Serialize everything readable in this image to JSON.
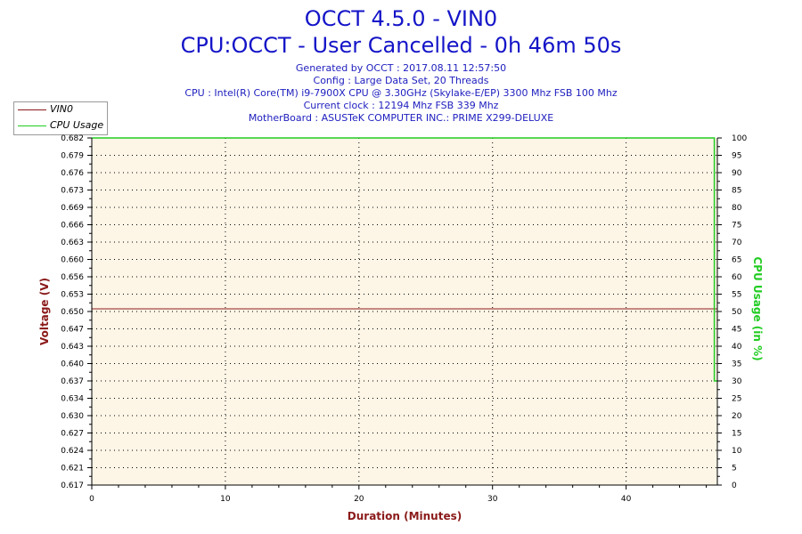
{
  "header": {
    "title": "OCCT 4.5.0 - VIN0",
    "subtitle": "CPU:OCCT - User Cancelled - 0h 46m 50s",
    "info_lines": [
      "Generated by OCCT : 2017.08.11 12:57:50",
      "Config : Large Data Set, 20 Threads",
      "CPU : Intel(R) Core(TM) i9-7900X CPU @ 3.30GHz (Skylake-E/EP) 3300 Mhz FSB 100 Mhz",
      "Current clock : 12194 Mhz FSB 339 Mhz",
      "MotherBoard : ASUSTeK COMPUTER INC.: PRIME X299-DELUXE"
    ]
  },
  "legend": {
    "placement": "top-left",
    "items": [
      {
        "label": "VIN0",
        "color": "#8b1a1a"
      },
      {
        "label": "CPU Usage",
        "color": "#22cc22"
      }
    ]
  },
  "colors": {
    "plot_background": "#fdf5e6",
    "title_text": "#1414c8",
    "axis_label_left": "#8b1a1a",
    "axis_label_right": "#22cc22",
    "axis_label_bottom": "#8b1a1a"
  },
  "chart_data": {
    "type": "line",
    "title": "OCCT 4.5.0 - VIN0",
    "subtitle": "CPU:OCCT - User Cancelled - 0h 46m 50s",
    "xlabel": "Duration (Minutes)",
    "ylabel": "Voltage (V)",
    "y2label": "CPU Usage (in %)",
    "xlim": [
      0,
      46.83
    ],
    "ylim": [
      0.617,
      0.682
    ],
    "y2lim": [
      0,
      100
    ],
    "x_ticks": [
      "0",
      "10",
      "20",
      "30",
      "40"
    ],
    "x_tick_values": [
      0,
      10,
      20,
      30,
      40
    ],
    "y_ticks": [
      "0.682",
      "0.679",
      "0.676",
      "0.673",
      "0.669",
      "0.666",
      "0.663",
      "0.660",
      "0.656",
      "0.653",
      "0.650",
      "0.647",
      "0.643",
      "0.640",
      "0.637",
      "0.634",
      "0.630",
      "0.627",
      "0.624",
      "0.621",
      "0.617"
    ],
    "y2_ticks": [
      "100",
      "95",
      "90",
      "85",
      "80",
      "75",
      "70",
      "65",
      "60",
      "55",
      "50",
      "45",
      "40",
      "35",
      "30",
      "25",
      "20",
      "15",
      "10",
      "5",
      "0"
    ],
    "grid": true,
    "series": [
      {
        "name": "VIN0",
        "axis": "left",
        "color": "#8b1a1a",
        "x": [
          0,
          46.83
        ],
        "y": [
          0.65,
          0.65
        ]
      },
      {
        "name": "CPU Usage",
        "axis": "right",
        "color": "#22cc22",
        "x": [
          0,
          46.6,
          46.6,
          46.83
        ],
        "y": [
          100,
          100,
          30,
          30
        ]
      }
    ]
  }
}
